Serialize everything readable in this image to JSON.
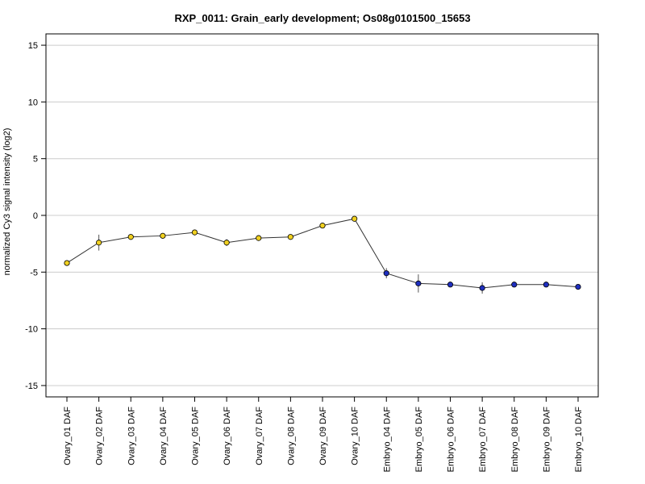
{
  "chart_data": {
    "type": "line",
    "title": "RXP_0011: Grain_early development; Os08g0101500_15653",
    "xlabel": "",
    "ylabel": "normalized Cy3 signal intensity (log2)",
    "ylim": [
      -16,
      16
    ],
    "yticks": [
      "15",
      "10",
      "5",
      "0",
      "-5",
      "-10",
      "-15"
    ],
    "ytick_values": [
      15,
      10,
      5,
      0,
      -5,
      -10,
      -15
    ],
    "grid": true,
    "categories": [
      "Ovary_01 DAF",
      "Ovary_02 DAF",
      "Ovary_03 DAF",
      "Ovary_04 DAF",
      "Ovary_05 DAF",
      "Ovary_06 DAF",
      "Ovary_07 DAF",
      "Ovary_08 DAF",
      "Ovary_09 DAF",
      "Ovary_10 DAF",
      "Embryo_04 DAF",
      "Embryo_05 DAF",
      "Embryo_06 DAF",
      "Embryo_07 DAF",
      "Embryo_08 DAF",
      "Embryo_09 DAF",
      "Embryo_10 DAF"
    ],
    "series": [
      {
        "values": [
          -4.2,
          -2.4,
          -1.9,
          -1.8,
          -1.5,
          -2.4,
          -2.0,
          -1.9,
          -0.9,
          -0.3,
          -5.1,
          -6.0,
          -6.1,
          -6.4,
          -6.1,
          -6.1,
          -6.3
        ],
        "errors": [
          0.25,
          0.7,
          0.25,
          0.25,
          0.25,
          0.3,
          0.2,
          0.2,
          0.2,
          0.2,
          0.45,
          0.8,
          0.2,
          0.5,
          0.2,
          0.2,
          0.2
        ],
        "colors": [
          "#f0d020",
          "#f0d020",
          "#f0d020",
          "#f0d020",
          "#f0d020",
          "#f0d020",
          "#f0d020",
          "#f0d020",
          "#f0d020",
          "#f0d020",
          "#1f2fbf",
          "#1f2fbf",
          "#1f2fbf",
          "#1f2fbf",
          "#1f2fbf",
          "#1f2fbf",
          "#1f2fbf"
        ]
      }
    ]
  }
}
